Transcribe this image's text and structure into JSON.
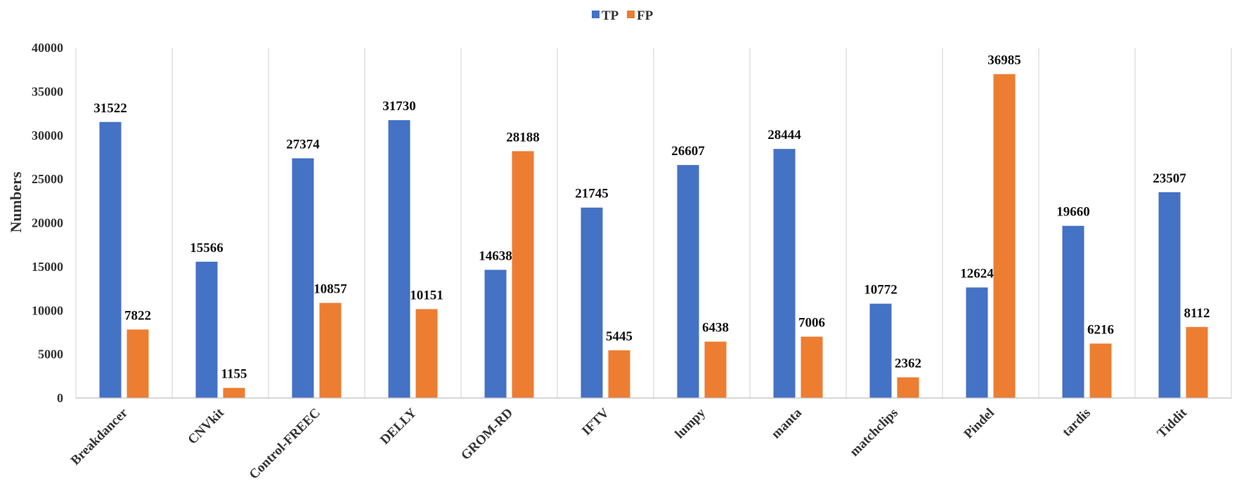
{
  "chart_data": {
    "type": "bar",
    "title": "",
    "xlabel": "",
    "ylabel": "Numbers",
    "ylim": [
      0,
      40000
    ],
    "yticks": [
      0,
      5000,
      10000,
      15000,
      20000,
      25000,
      30000,
      35000,
      40000
    ],
    "grid": "vertical category separators",
    "legend_position": "top-center",
    "categories": [
      "Breakdancer",
      "CNVkit",
      "Control-FREEC",
      "DELLY",
      "GROM-RD",
      "IFTV",
      "lumpy",
      "manta",
      "matchclips",
      "Pindel",
      "tardis",
      "Tiddit"
    ],
    "series": [
      {
        "name": "TP",
        "color": "#4472C4",
        "values": [
          31522,
          15566,
          27374,
          31730,
          14638,
          21745,
          26607,
          28444,
          10772,
          12624,
          19660,
          23507
        ]
      },
      {
        "name": "FP",
        "color": "#ED7D31",
        "values": [
          7822,
          1155,
          10857,
          10151,
          28188,
          5445,
          6438,
          7006,
          2362,
          36985,
          6216,
          8112
        ]
      }
    ]
  }
}
